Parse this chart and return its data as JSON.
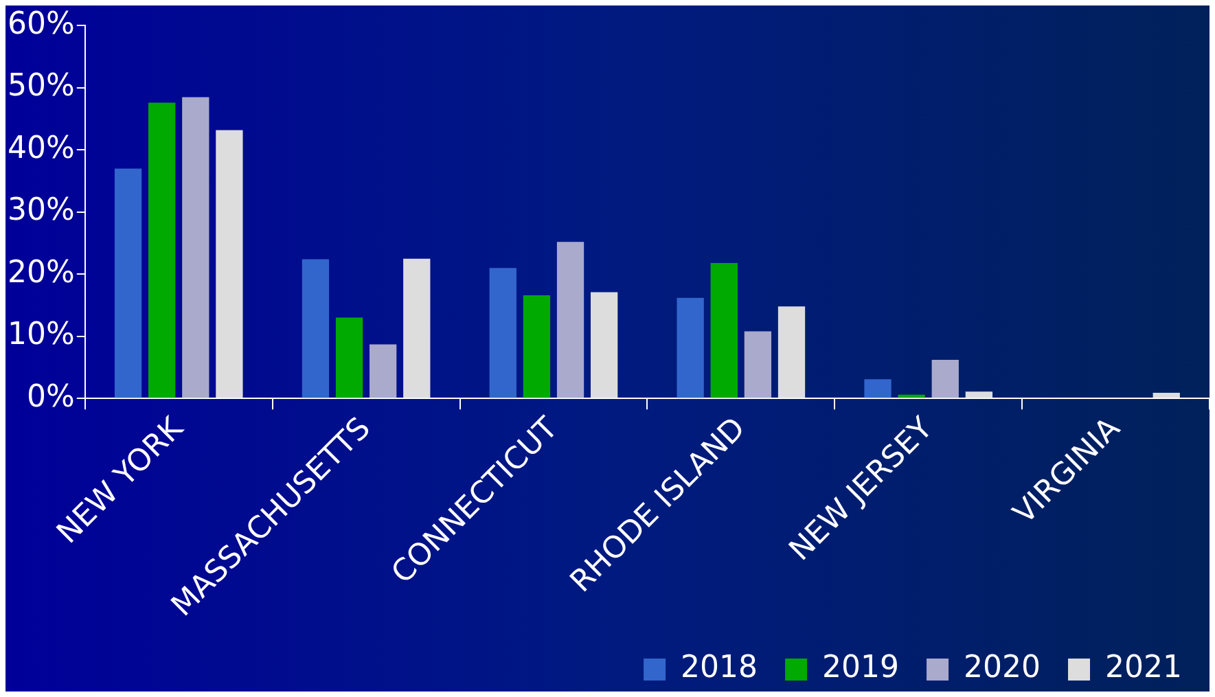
{
  "chart_data": {
    "type": "bar",
    "categories": [
      "NEW YORK",
      "MASSACHUSETTS",
      "CONNECTICUT",
      "RHODE ISLAND",
      "NEW JERSEY",
      "VIRGINIA"
    ],
    "series": [
      {
        "name": "2018",
        "color": "#3366cc",
        "values": [
          37,
          22.4,
          21,
          16.2,
          3.1,
          0
        ]
      },
      {
        "name": "2019",
        "color": "#00aa00",
        "values": [
          47.6,
          13,
          16.6,
          21.8,
          0.6,
          0
        ]
      },
      {
        "name": "2020",
        "color": "#aaaacc",
        "values": [
          48.5,
          8.7,
          25.2,
          10.8,
          6.2,
          0
        ]
      },
      {
        "name": "2021",
        "color": "#dddddd",
        "values": [
          43.2,
          22.5,
          17.1,
          14.8,
          1.1,
          0.9
        ]
      }
    ],
    "ylim": [
      0,
      60
    ],
    "yticks": [
      {
        "value": 0,
        "label": "0%"
      },
      {
        "value": 10,
        "label": "10%"
      },
      {
        "value": 20,
        "label": "20%"
      },
      {
        "value": 30,
        "label": "30%"
      },
      {
        "value": 40,
        "label": "40%"
      },
      {
        "value": 50,
        "label": "50%"
      },
      {
        "value": 60,
        "label": "60%"
      }
    ],
    "grid": false,
    "legend": "bottom right"
  }
}
